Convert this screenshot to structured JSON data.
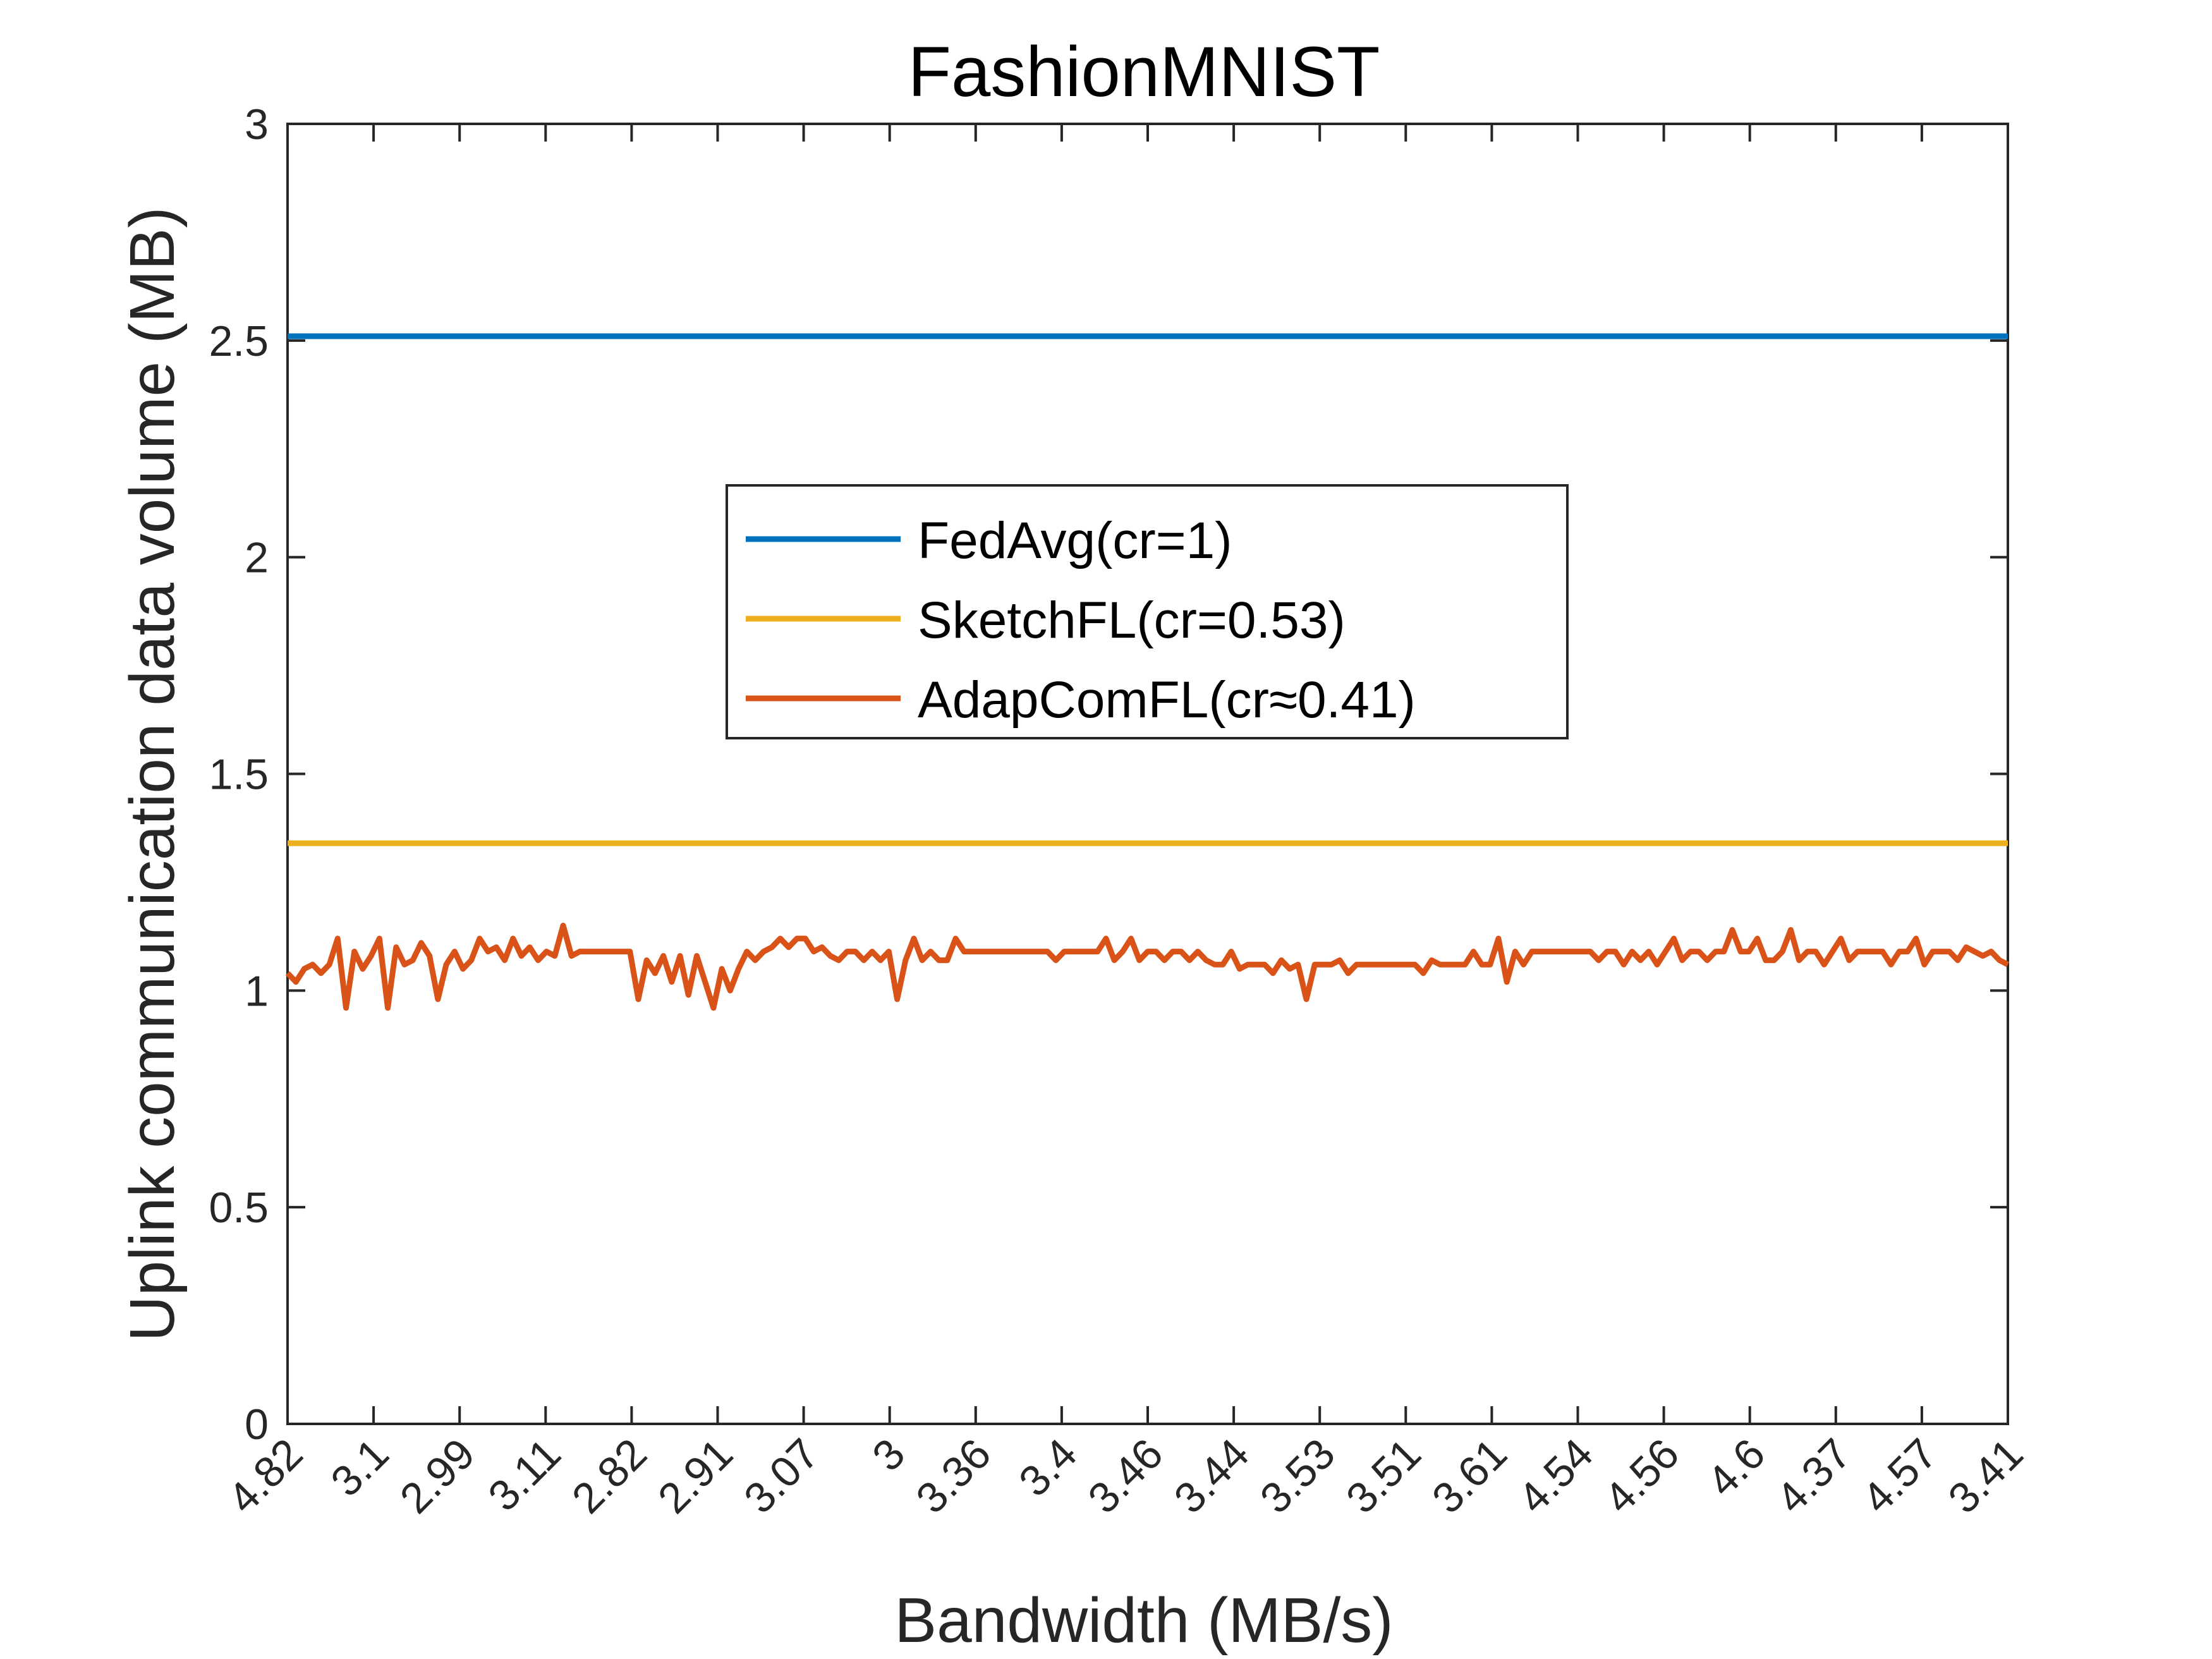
{
  "chart_data": {
    "type": "line",
    "title": "FashionMNIST",
    "xlabel": "Bandwidth (MB/s)",
    "ylabel": "Uplink communication data volume (MB)",
    "ylim": [
      0,
      3
    ],
    "yticks": [
      "0",
      "0.5",
      "1",
      "1.5",
      "2",
      "2.5",
      "3"
    ],
    "xticks": [
      "4.82",
      "3.1",
      "2.99",
      "3.11",
      "2.82",
      "2.91",
      "3.07",
      "3",
      "3.36",
      "3.4",
      "3.46",
      "3.44",
      "3.53",
      "3.51",
      "3.61",
      "4.54",
      "4.56",
      "4.6",
      "4.37",
      "4.57",
      "3.41"
    ],
    "x_points": 200,
    "grid": false,
    "legend_position": "center",
    "series": [
      {
        "name": "FedAvg(cr=1)",
        "color": "#0072BD",
        "values": [
          2.51
        ]
      },
      {
        "name": "SketchFL(cr=0.53)",
        "color": "#EDB120",
        "values": [
          1.34
        ]
      },
      {
        "name": "AdapComFL(cr≈0.41)",
        "color": "#D95319",
        "values": [
          1.04,
          1.02,
          1.05,
          1.06,
          1.04,
          1.06,
          1.12,
          0.96,
          1.09,
          1.05,
          1.08,
          1.12,
          0.96,
          1.1,
          1.06,
          1.07,
          1.11,
          1.08,
          0.98,
          1.06,
          1.09,
          1.05,
          1.07,
          1.12,
          1.09,
          1.1,
          1.07,
          1.12,
          1.08,
          1.1,
          1.07,
          1.09,
          1.08,
          1.15,
          1.08,
          1.09,
          1.09,
          1.09,
          1.09,
          1.09,
          1.09,
          1.09,
          0.98,
          1.07,
          1.04,
          1.08,
          1.02,
          1.08,
          0.99,
          1.08,
          1.02,
          0.96,
          1.05,
          1.0,
          1.05,
          1.09,
          1.07,
          1.09,
          1.1,
          1.12,
          1.1,
          1.12,
          1.12,
          1.09,
          1.1,
          1.08,
          1.07,
          1.09,
          1.09,
          1.07,
          1.09,
          1.07,
          1.09,
          0.98,
          1.07,
          1.12,
          1.07,
          1.09,
          1.07,
          1.07,
          1.12,
          1.09,
          1.09,
          1.09,
          1.09,
          1.09,
          1.09,
          1.09,
          1.09,
          1.09,
          1.09,
          1.09,
          1.07,
          1.09,
          1.09,
          1.09,
          1.09,
          1.09,
          1.12,
          1.07,
          1.09,
          1.12,
          1.07,
          1.09,
          1.09,
          1.07,
          1.09,
          1.09,
          1.07,
          1.09,
          1.07,
          1.06,
          1.06,
          1.09,
          1.05,
          1.06,
          1.06,
          1.06,
          1.04,
          1.07,
          1.05,
          1.06,
          0.98,
          1.06,
          1.06,
          1.06,
          1.07,
          1.04,
          1.06,
          1.06,
          1.06,
          1.06,
          1.06,
          1.06,
          1.06,
          1.06,
          1.04,
          1.07,
          1.06,
          1.06,
          1.06,
          1.06,
          1.09,
          1.06,
          1.06,
          1.12,
          1.02,
          1.09,
          1.06,
          1.09,
          1.09,
          1.09,
          1.09,
          1.09,
          1.09,
          1.09,
          1.09,
          1.07,
          1.09,
          1.09,
          1.06,
          1.09,
          1.07,
          1.09,
          1.06,
          1.09,
          1.12,
          1.07,
          1.09,
          1.09,
          1.07,
          1.09,
          1.09,
          1.14,
          1.09,
          1.09,
          1.12,
          1.07,
          1.07,
          1.09,
          1.14,
          1.07,
          1.09,
          1.09,
          1.06,
          1.09,
          1.12,
          1.07,
          1.09,
          1.09,
          1.09,
          1.09,
          1.06,
          1.09,
          1.09,
          1.12,
          1.06,
          1.09,
          1.09,
          1.09,
          1.07,
          1.1,
          1.09,
          1.08,
          1.09,
          1.07,
          1.06
        ]
      }
    ]
  }
}
